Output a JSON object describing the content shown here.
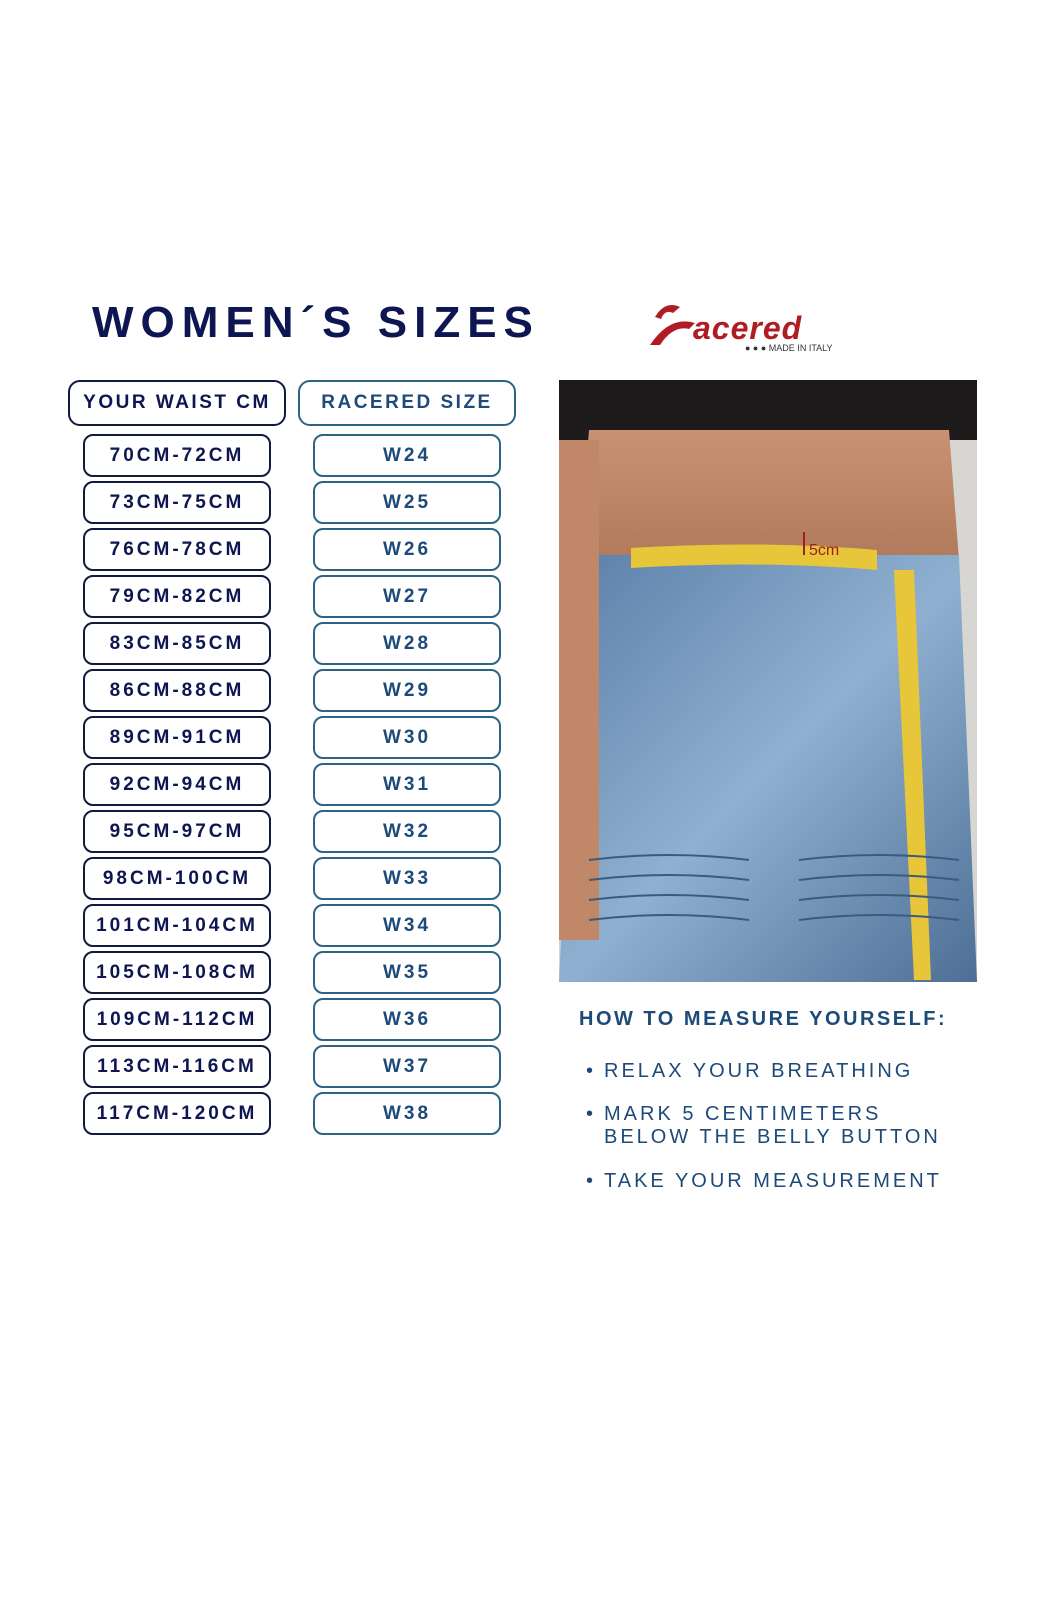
{
  "title": "WOMEN´S SIZES",
  "logo": {
    "brand": "Racered",
    "tagline": "MADE IN ITALY",
    "color": "#b01c24"
  },
  "table": {
    "headers": [
      "YOUR WAIST CM",
      "RACERED SIZE"
    ],
    "rows": [
      {
        "waist": "70CM-72CM",
        "size": "W24"
      },
      {
        "waist": "73CM-75CM",
        "size": "W25"
      },
      {
        "waist": "76CM-78CM",
        "size": "W26"
      },
      {
        "waist": "79CM-82CM",
        "size": "W27"
      },
      {
        "waist": "83CM-85CM",
        "size": "W28"
      },
      {
        "waist": "86CM-88CM",
        "size": "W29"
      },
      {
        "waist": "89CM-91CM",
        "size": "W30"
      },
      {
        "waist": "92CM-94CM",
        "size": "W31"
      },
      {
        "waist": "95CM-97CM",
        "size": "W32"
      },
      {
        "waist": "98CM-100CM",
        "size": "W33"
      },
      {
        "waist": "101CM-104CM",
        "size": "W34"
      },
      {
        "waist": "105CM-108CM",
        "size": "W35"
      },
      {
        "waist": "109CM-112CM",
        "size": "W36"
      },
      {
        "waist": "113CM-116CM",
        "size": "W37"
      },
      {
        "waist": "117CM-120CM",
        "size": "W38"
      }
    ]
  },
  "photo": {
    "tape_label": "5cm"
  },
  "howto": {
    "heading": "HOW TO MEASURE YOURSELF:",
    "steps": [
      "RELAX YOUR BREATHING",
      "MARK 5 CENTIMETERS",
      "BELOW THE BELLY BUTTON",
      "TAKE YOUR MEASUREMENT"
    ]
  },
  "colors": {
    "navy": "#0d1650",
    "blue": "#1d4a78"
  }
}
